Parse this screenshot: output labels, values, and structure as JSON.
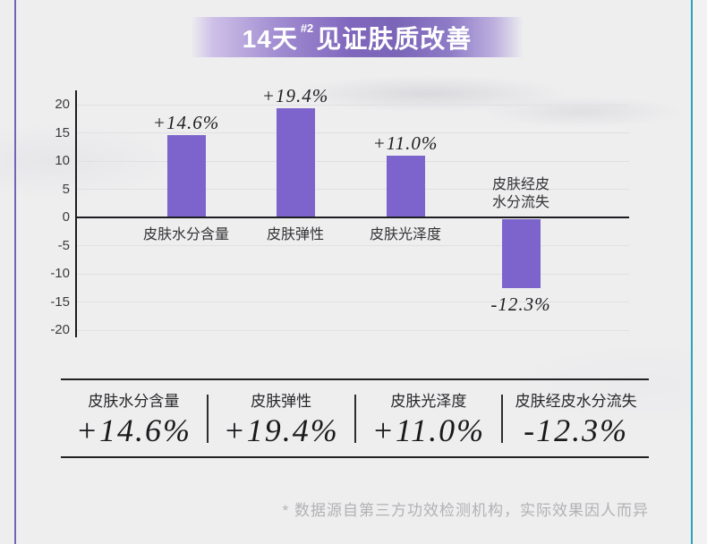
{
  "page": {
    "background_color": "#eeeeef",
    "left_accent_color": "#7166b6",
    "right_accent_color": "#2ba3bf"
  },
  "banner": {
    "text_prefix": "14天",
    "superscript": "#2",
    "text_suffix": "见证肤质改善",
    "text_color": "#ffffff",
    "gradient_color": "#7d68bb"
  },
  "chart_data": {
    "type": "bar",
    "title": "14天见证肤质改善",
    "categories": [
      "皮肤水分含量",
      "皮肤弹性",
      "皮肤光泽度",
      "皮肤经皮水分流失"
    ],
    "values": [
      14.6,
      19.4,
      11.0,
      -12.3
    ],
    "value_labels": [
      "+14.6%",
      "+19.4%",
      "+11.0%",
      "-12.3%"
    ],
    "category_label_lines": [
      [
        "皮肤水分含量"
      ],
      [
        "皮肤弹性"
      ],
      [
        "皮肤光泽度"
      ],
      [
        "皮肤经皮",
        "水分流失"
      ]
    ],
    "y_ticks": [
      20,
      15,
      10,
      5,
      0,
      -5,
      -10,
      -15,
      -20
    ],
    "ylim": [
      -20,
      20
    ],
    "bar_color": "#7c64cc",
    "grid": true,
    "legend": false,
    "xlabel": "",
    "ylabel": ""
  },
  "summary": {
    "items": [
      {
        "label": "皮肤水分含量",
        "value": "+14.6%"
      },
      {
        "label": "皮肤弹性",
        "value": "+19.4%"
      },
      {
        "label": "皮肤光泽度",
        "value": "+11.0%"
      },
      {
        "label": "皮肤经皮水分流失",
        "value": "-12.3%"
      }
    ]
  },
  "footnote": "* 数据源自第三方功效检测机构，实际效果因人而异"
}
